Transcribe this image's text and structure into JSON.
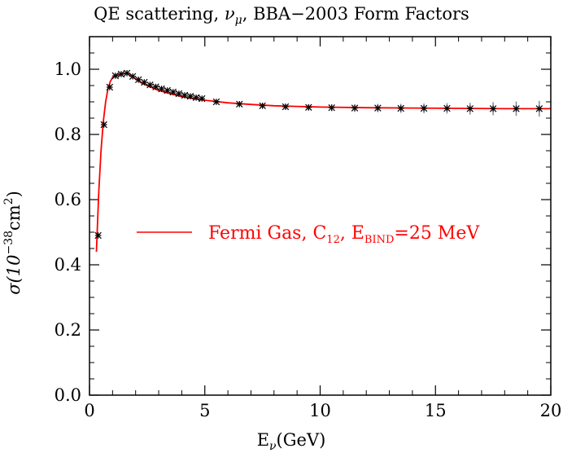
{
  "chart_data": {
    "type": "line",
    "title": {
      "prefix": "QE scattering, ",
      "nu_symbol": "ν",
      "nu_sub": "μ",
      "suffix": ", BBA−2003 Form Factors"
    },
    "xlabel": {
      "main": "E",
      "sub": "ν",
      "rest": "(GeV)"
    },
    "ylabel": {
      "prefix": "σ(10",
      "exp": "−38",
      "mid": "cm",
      "exp2": "2",
      "suffix": ")"
    },
    "xlim": [
      0,
      20
    ],
    "ylim": [
      0,
      1.1
    ],
    "x_ticks": [
      0,
      5,
      10,
      15,
      20
    ],
    "x_tick_labels": [
      "0",
      "5",
      "10",
      "15",
      "20"
    ],
    "y_ticks": [
      0.0,
      0.2,
      0.4,
      0.6,
      0.8,
      1.0
    ],
    "y_tick_labels": [
      "0.0",
      "0.2",
      "0.4",
      "0.6",
      "0.8",
      "1.0"
    ],
    "legend": {
      "placement": "center-left",
      "main": "Fermi Gas, C",
      "sub1": "12",
      "mid": ", E",
      "sub2": "BIND",
      "tail": "=25 MeV"
    },
    "colors": {
      "model_line": "#ff0000",
      "data_points": "#000000",
      "error_bars": "#888888"
    },
    "series": [
      {
        "name": "Fermi Gas, C12, EBIND=25 MeV",
        "style": "line",
        "x": [
          0.3,
          0.35,
          0.4,
          0.5,
          0.6,
          0.7,
          0.8,
          0.9,
          1.0,
          1.1,
          1.25,
          1.4,
          1.6,
          1.8,
          2.0,
          2.25,
          2.5,
          3.0,
          3.5,
          4.0,
          4.5,
          5.0,
          6.0,
          7.0,
          8.0,
          9.0,
          10.0,
          12.0,
          14.0,
          16.0,
          18.0,
          20.0
        ],
        "y": [
          0.44,
          0.53,
          0.62,
          0.75,
          0.84,
          0.9,
          0.94,
          0.962,
          0.975,
          0.98,
          0.983,
          0.986,
          0.988,
          0.98,
          0.97,
          0.958,
          0.95,
          0.935,
          0.925,
          0.916,
          0.91,
          0.905,
          0.897,
          0.892,
          0.888,
          0.886,
          0.884,
          0.882,
          0.881,
          0.88,
          0.879,
          0.879
        ]
      },
      {
        "name": "",
        "style": "points",
        "x": [
          0.375,
          0.625,
          0.875,
          1.125,
          1.375,
          1.625,
          1.875,
          2.125,
          2.375,
          2.625,
          2.875,
          3.125,
          3.375,
          3.625,
          3.875,
          4.125,
          4.375,
          4.625,
          4.875,
          5.5,
          6.5,
          7.5,
          8.5,
          9.5,
          10.5,
          11.5,
          12.5,
          13.5,
          14.5,
          15.5,
          16.5,
          17.5,
          18.5,
          19.5
        ],
        "y": [
          0.49,
          0.83,
          0.945,
          0.98,
          0.985,
          0.988,
          0.978,
          0.968,
          0.96,
          0.952,
          0.946,
          0.94,
          0.935,
          0.93,
          0.925,
          0.92,
          0.917,
          0.913,
          0.91,
          0.9,
          0.893,
          0.888,
          0.885,
          0.883,
          0.882,
          0.881,
          0.881,
          0.88,
          0.88,
          0.88,
          0.879,
          0.879,
          0.879,
          0.879
        ],
        "err": [
          0.005,
          0.005,
          0.005,
          0.005,
          0.005,
          0.005,
          0.005,
          0.005,
          0.005,
          0.005,
          0.005,
          0.005,
          0.005,
          0.005,
          0.005,
          0.005,
          0.005,
          0.006,
          0.006,
          0.007,
          0.008,
          0.008,
          0.009,
          0.01,
          0.011,
          0.012,
          0.013,
          0.014,
          0.015,
          0.016,
          0.018,
          0.02,
          0.022,
          0.024
        ]
      }
    ]
  }
}
